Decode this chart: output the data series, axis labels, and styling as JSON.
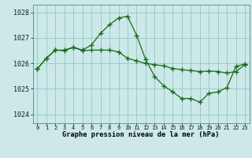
{
  "title": "Graphe pression niveau de la mer (hPa)",
  "bg_color": "#cce8e8",
  "grid_color": "#99cccc",
  "line_color": "#1a6b1a",
  "x_ticks": [
    0,
    1,
    2,
    3,
    4,
    5,
    6,
    7,
    8,
    9,
    10,
    11,
    12,
    13,
    14,
    15,
    16,
    17,
    18,
    19,
    20,
    21,
    22,
    23
  ],
  "ylim": [
    1023.65,
    1028.3
  ],
  "yticks": [
    1024,
    1025,
    1026,
    1027,
    1028
  ],
  "series1_x": [
    0,
    1,
    2,
    3,
    4,
    5,
    6,
    7,
    8,
    9,
    10,
    11,
    12,
    13,
    14,
    15,
    16,
    17,
    18,
    19,
    20,
    21,
    22,
    23
  ],
  "series1_y": [
    1025.78,
    1026.2,
    1026.52,
    1026.5,
    1026.63,
    1026.52,
    1026.72,
    1027.18,
    1027.52,
    1027.78,
    1027.85,
    1027.1,
    1026.15,
    1025.48,
    1025.12,
    1024.88,
    1024.62,
    1024.62,
    1024.48,
    1024.82,
    1024.88,
    1025.05,
    1025.88,
    1025.98
  ],
  "series2_x": [
    0,
    1,
    2,
    3,
    4,
    5,
    6,
    7,
    8,
    9,
    10,
    11,
    12,
    13,
    14,
    15,
    16,
    17,
    18,
    19,
    20,
    21,
    22,
    23
  ],
  "series2_y": [
    1025.78,
    1026.2,
    1026.52,
    1026.52,
    1026.63,
    1026.5,
    1026.52,
    1026.52,
    1026.52,
    1026.45,
    1026.2,
    1026.1,
    1026.0,
    1025.95,
    1025.9,
    1025.8,
    1025.75,
    1025.72,
    1025.68,
    1025.7,
    1025.68,
    1025.62,
    1025.68,
    1025.95
  ]
}
